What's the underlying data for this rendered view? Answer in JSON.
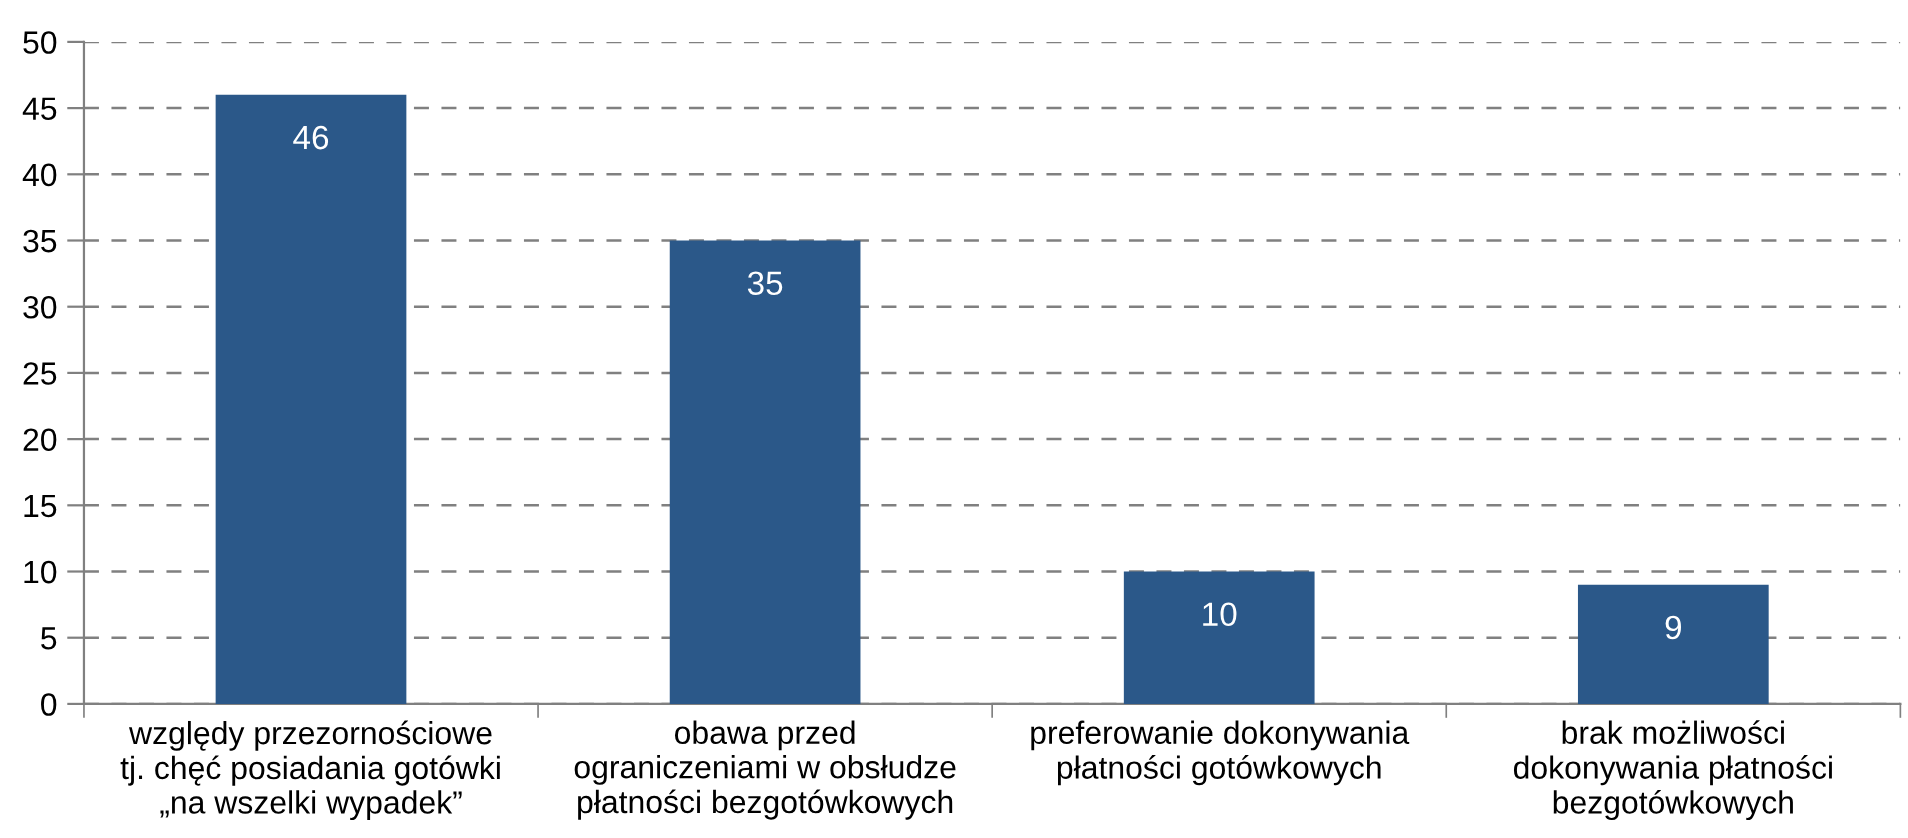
{
  "chart_data": {
    "type": "bar",
    "categories": [
      "względy przezornościowe\ntj. chęć posiadania gotówki\n„na wszelki wypadek”",
      "obawa przed\nograniczeniami w obsłudze\npłatności bezgotówkowych",
      "preferowanie dokonywania\npłatności gotówkowych",
      "brak możliwości\ndokonywania płatności\nbezgotówkowych"
    ],
    "values": [
      46,
      35,
      10,
      9
    ],
    "color": "#2b5889",
    "ylim": [
      0,
      50
    ],
    "yticks": [
      0,
      5,
      10,
      15,
      20,
      25,
      30,
      35,
      40,
      45,
      50
    ],
    "grid": "y",
    "data_labels": true
  }
}
